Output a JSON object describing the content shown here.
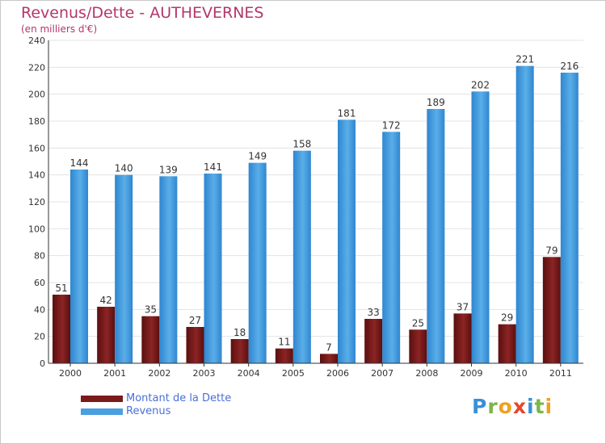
{
  "title": "Revenus/Dette - AUTHEVERNES",
  "subtitle": "(en milliers d'€)",
  "logo": {
    "letters": [
      {
        "ch": "P",
        "color": "#3a8fd8"
      },
      {
        "ch": "r",
        "color": "#7ab648"
      },
      {
        "ch": "o",
        "color": "#f0a020"
      },
      {
        "ch": "x",
        "color": "#e8452c"
      },
      {
        "ch": "i",
        "color": "#3a8fd8"
      },
      {
        "ch": "t",
        "color": "#7ab648"
      },
      {
        "ch": "i",
        "color": "#f0a020"
      }
    ]
  },
  "chart_data": {
    "type": "bar",
    "categories": [
      "2000",
      "2001",
      "2002",
      "2003",
      "2004",
      "2005",
      "2006",
      "2007",
      "2008",
      "2009",
      "2010",
      "2011"
    ],
    "series": [
      {
        "name": "Montant de la Dette",
        "color": "#7a1a1a",
        "values": [
          51,
          42,
          35,
          27,
          18,
          11,
          7,
          33,
          25,
          37,
          29,
          79
        ]
      },
      {
        "name": "Revenus",
        "color": "#4a9fe0",
        "values": [
          144,
          140,
          139,
          141,
          149,
          158,
          181,
          172,
          189,
          202,
          221,
          216
        ]
      }
    ],
    "ylim": [
      0,
      240
    ],
    "yticks": [
      0,
      20,
      40,
      60,
      80,
      100,
      120,
      140,
      160,
      180,
      200,
      220,
      240
    ],
    "grid": true,
    "legend": "bottom-left"
  }
}
